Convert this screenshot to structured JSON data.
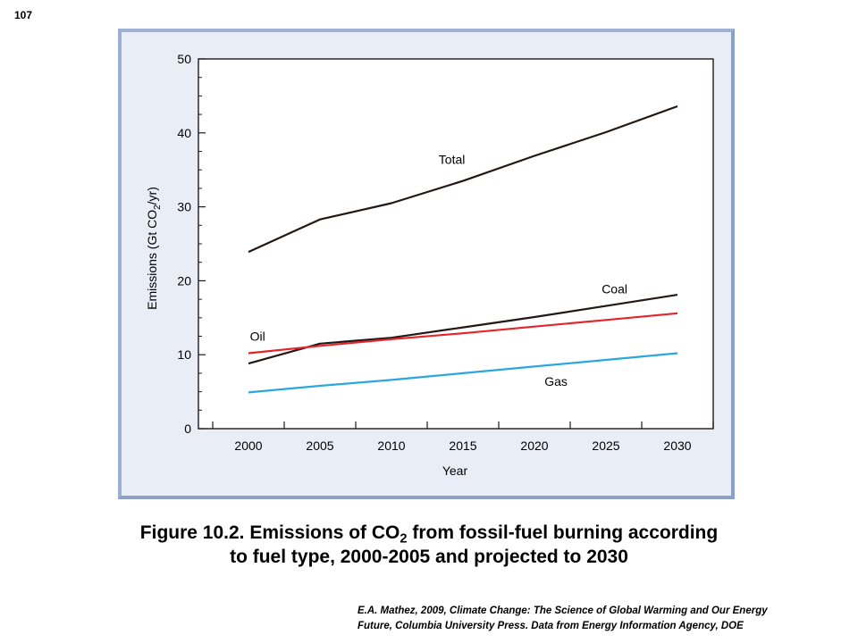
{
  "page_number": "107",
  "caption": {
    "line1_prefix": "Figure 10.2.  Emissions of CO",
    "line1_sub": "2",
    "line1_suffix": " from fossil-fuel burning according",
    "line2": "to fuel type, 2000-2005 and projected to 2030"
  },
  "source": {
    "line1": "E.A. Mathez, 2009, Climate Change: The Science of Global Warming and Our Energy",
    "line2": "Future, Columbia University Press. Data from Energy Information Agency, DOE"
  },
  "chart_data": {
    "type": "line",
    "title": "",
    "xlabel": "Year",
    "ylabel_prefix": "Emissions (Gt CO",
    "ylabel_sub": "2",
    "ylabel_suffix": "/yr)",
    "xlim": [
      1996.5,
      2032.5
    ],
    "ylim": [
      0,
      50
    ],
    "x_ticks": [
      2000,
      2005,
      2010,
      2015,
      2020,
      2025,
      2030
    ],
    "y_ticks": [
      0,
      10,
      20,
      30,
      40,
      50
    ],
    "y_minor_step": 2.5,
    "grid": false,
    "series": [
      {
        "name": "Total",
        "color": "#231815",
        "x": [
          2000,
          2005,
          2010,
          2015,
          2020,
          2025,
          2030
        ],
        "values": [
          23.9,
          28.3,
          30.5,
          33.5,
          36.9,
          40.1,
          43.6
        ]
      },
      {
        "name": "Coal",
        "color": "#231815",
        "x": [
          2000,
          2005,
          2010,
          2015,
          2020,
          2025,
          2030
        ],
        "values": [
          8.8,
          11.5,
          12.3,
          13.7,
          15.1,
          16.6,
          18.1
        ]
      },
      {
        "name": "Oil",
        "color": "#e3262b",
        "x": [
          2000,
          2005,
          2010,
          2015,
          2020,
          2025,
          2030
        ],
        "values": [
          10.2,
          11.2,
          12.1,
          12.9,
          13.8,
          14.7,
          15.6
        ]
      },
      {
        "name": "Gas",
        "color": "#2aa7de",
        "x": [
          2000,
          2005,
          2010,
          2015,
          2020,
          2025,
          2030
        ],
        "values": [
          4.9,
          5.8,
          6.6,
          7.5,
          8.4,
          9.3,
          10.2
        ]
      }
    ],
    "annotations": [
      {
        "text": "Total",
        "x": 2013.3,
        "y": 35.8
      },
      {
        "text": "Coal",
        "x": 2024.7,
        "y": 18.3
      },
      {
        "text": "Oil",
        "x": 2000.1,
        "y": 11.9
      },
      {
        "text": "Gas",
        "x": 2020.7,
        "y": 5.8
      }
    ]
  }
}
